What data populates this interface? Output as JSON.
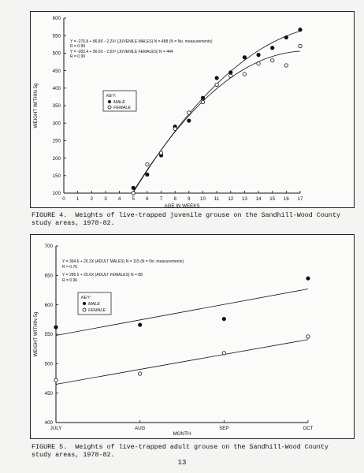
{
  "chart_data": [
    {
      "type": "scatter",
      "title": "",
      "xlabel": "AGE IN WEEKS",
      "ylabel": "WEIGHT WITHIN 5g",
      "xlim": [
        0,
        17
      ],
      "ylim": [
        100,
        600
      ],
      "x_ticks": [
        0,
        1,
        2,
        3,
        4,
        5,
        6,
        7,
        8,
        9,
        10,
        11,
        12,
        13,
        14,
        15,
        16,
        17
      ],
      "y_ticks": [
        100,
        150,
        200,
        250,
        300,
        350,
        400,
        450,
        500,
        550,
        600
      ],
      "grid": false,
      "equations": [
        "Y = -276.8 + 86.8X - 2.2X² (JUVENILE MALES) N = 488 (N = No. measurements)",
        "R = 0.99",
        "Y = -283.4 + 90.6X - 2.6X² (JUVENILE FEMALES) N = 444",
        "R = 0.99"
      ],
      "key": {
        "title": "KEY:",
        "entries": [
          "MALE",
          "FEMALE"
        ]
      },
      "series": [
        {
          "name": "MALE",
          "marker": "filled-circle",
          "x": [
            5,
            6,
            7,
            8,
            9,
            10,
            11,
            12,
            13,
            14,
            15,
            16,
            17
          ],
          "y": [
            115,
            153,
            208,
            290,
            307,
            372,
            429,
            445,
            488,
            495,
            515,
            545,
            567
          ]
        },
        {
          "name": "FEMALE",
          "marker": "open-circle",
          "x": [
            5,
            6,
            7,
            8,
            9,
            10,
            11,
            12,
            13,
            14,
            15,
            16,
            17
          ],
          "y": [
            100,
            182,
            215,
            284,
            330,
            360,
            410,
            435,
            440,
            470,
            479,
            465,
            520
          ]
        }
      ],
      "fits": [
        {
          "name": "MALE",
          "a": -276.8,
          "b": 86.8,
          "c": -2.2
        },
        {
          "name": "FEMALE",
          "a": -283.4,
          "b": 90.6,
          "c": -2.6
        }
      ]
    },
    {
      "type": "scatter",
      "title": "",
      "xlabel": "MONTH",
      "ylabel": "WEIGHT WITHIN 5g",
      "categories": [
        "JULY",
        "AUG",
        "SEP",
        "OCT"
      ],
      "ylim": [
        400,
        700
      ],
      "y_ticks": [
        400,
        450,
        500,
        550,
        600,
        650,
        700
      ],
      "grid": false,
      "equations": [
        "Y = 364.6 + 26.3X (ADULT MALES) N = 115 (N = No. measurements)",
        "R = 0.76",
        "Y = 285.5 + 25.6X (ADULT FEMALES) N = 88",
        "R = 0.96"
      ],
      "key": {
        "title": "KEY:",
        "entries": [
          "MALE",
          "FEMALE"
        ]
      },
      "series": [
        {
          "name": "MALE",
          "marker": "filled-circle",
          "values": [
            562,
            566,
            576,
            645
          ]
        },
        {
          "name": "FEMALE",
          "marker": "open-circle",
          "values": [
            472,
            483,
            518,
            546
          ]
        }
      ],
      "fits": [
        {
          "name": "MALE",
          "start": 548,
          "end": 627
        },
        {
          "name": "FEMALE",
          "start": 465,
          "end": 541
        }
      ]
    }
  ],
  "captions": {
    "figure4": "FIGURE 4.  Weights of live-trapped juvenile grouse on the Sandhill-Wood County\nstudy areas, 1978-82.",
    "figure5": "FIGURE 5.  Weights of live-trapped adult grouse on the Sandhill-Wood County\nstudy areas, 1978-82."
  },
  "page_number": "13"
}
